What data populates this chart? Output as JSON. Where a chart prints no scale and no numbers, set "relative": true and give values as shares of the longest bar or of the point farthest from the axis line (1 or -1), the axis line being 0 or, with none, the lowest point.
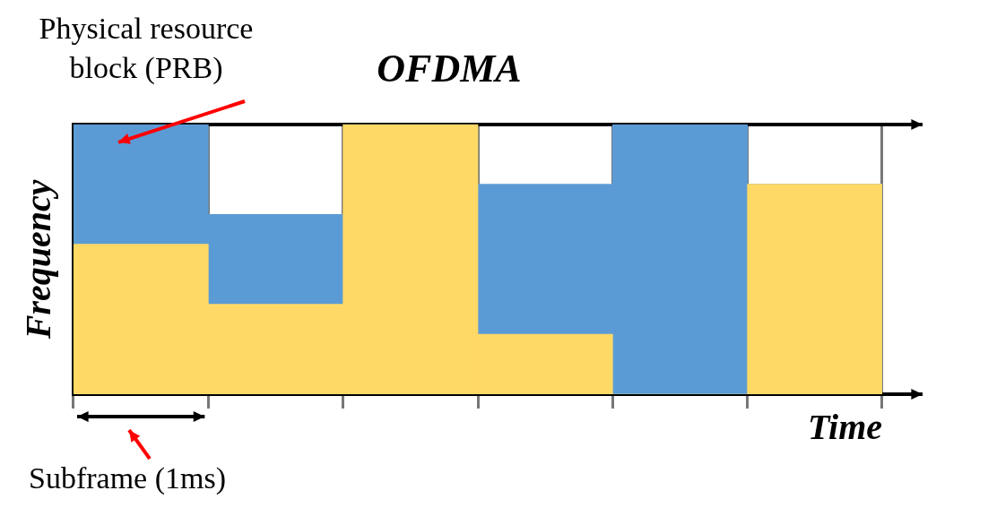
{
  "chart_data": {
    "type": "bar",
    "title": "OFDMA",
    "xlabel": "Time",
    "ylabel": "Frequency",
    "categories": [
      null,
      null,
      null,
      null,
      null,
      null
    ],
    "relative": true,
    "stacked": true,
    "grid": "x",
    "series": [
      {
        "color": "#ffd966",
        "values": [
          0.556,
          0.333,
          1,
          0.222,
          0,
          0.778
        ]
      },
      {
        "color": "#5b9bd5",
        "values": [
          0.444,
          0.333,
          0,
          0.556,
          1,
          0
        ]
      }
    ],
    "annotations": [
      "Physical resource block (PRB)",
      "Subframe (1ms)"
    ]
  }
}
